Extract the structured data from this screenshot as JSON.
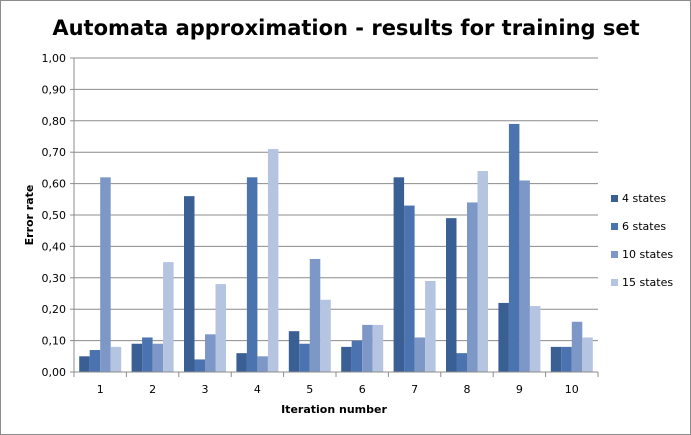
{
  "chart_data": {
    "type": "bar",
    "title": "Automata approximation - results for training set",
    "xlabel": "Iteration number",
    "ylabel": "Error rate",
    "ylim": [
      0,
      1
    ],
    "y_ticks": [
      "0,00",
      "0,10",
      "0,20",
      "0,30",
      "0,40",
      "0,50",
      "0,60",
      "0,70",
      "0,80",
      "0,90",
      "1,00"
    ],
    "categories": [
      "1",
      "2",
      "3",
      "4",
      "5",
      "6",
      "7",
      "8",
      "9",
      "10"
    ],
    "grid": true,
    "legend_position": "right",
    "series": [
      {
        "name": "4 states",
        "color": "#3A5F95",
        "values": [
          0.05,
          0.09,
          0.56,
          0.06,
          0.13,
          0.08,
          0.62,
          0.49,
          0.22,
          0.08
        ]
      },
      {
        "name": "6 states",
        "color": "#4A73AF",
        "values": [
          0.07,
          0.11,
          0.04,
          0.62,
          0.09,
          0.1,
          0.53,
          0.06,
          0.79,
          0.08
        ]
      },
      {
        "name": "10 states",
        "color": "#7D98C7",
        "values": [
          0.62,
          0.09,
          0.12,
          0.05,
          0.36,
          0.15,
          0.11,
          0.54,
          0.61,
          0.16
        ]
      },
      {
        "name": "15 states",
        "color": "#B5C5E1",
        "values": [
          0.08,
          0.35,
          0.28,
          0.71,
          0.23,
          0.15,
          0.29,
          0.64,
          0.21,
          0.11
        ]
      }
    ]
  }
}
